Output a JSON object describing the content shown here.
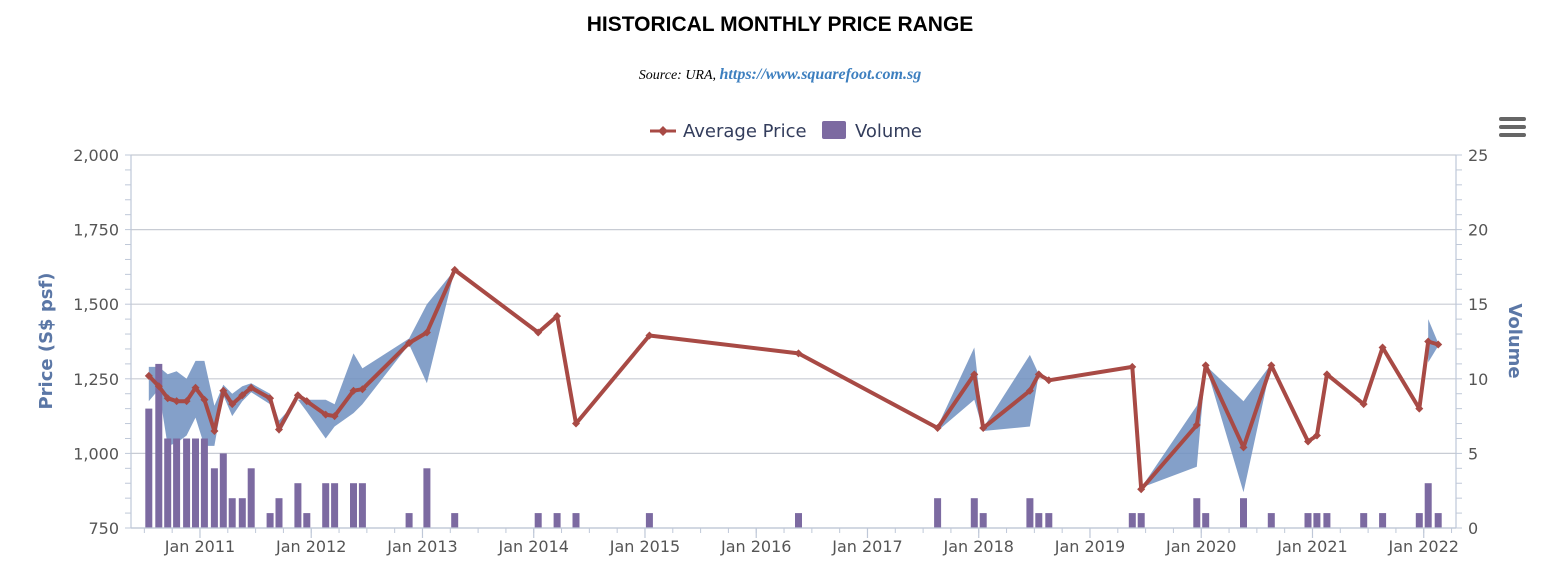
{
  "chart_data": {
    "type": "line+range+bar",
    "title": "HISTORICAL MONTHLY PRICE RANGE",
    "subtitle_prefix": "Source: URA, ",
    "subtitle_link": "https://www.squarefoot.com.sg",
    "legend": [
      "Average Price",
      "Volume"
    ],
    "y_left": {
      "title": "Price (S$ psf)",
      "min": 750,
      "max": 2000,
      "ticks": [
        750,
        1000,
        1250,
        1500,
        1750,
        2000
      ],
      "tick_labels": [
        "750",
        "1,000",
        "1,250",
        "1,500",
        "1,750",
        "2,000"
      ]
    },
    "y_right": {
      "title": "Volume",
      "min": 0,
      "max": 25,
      "ticks": [
        0,
        5,
        10,
        15,
        20,
        25
      ],
      "tick_labels": [
        "0",
        "5",
        "10",
        "15",
        "20",
        "25"
      ]
    },
    "x_axis": {
      "min": 2010.38,
      "max": 2022.29,
      "ticks": [
        2011,
        2012,
        2013,
        2014,
        2015,
        2016,
        2017,
        2018,
        2019,
        2020,
        2021,
        2022
      ],
      "tick_labels": [
        "Jan 2011",
        "Jan 2012",
        "Jan 2013",
        "Jan 2014",
        "Jan 2015",
        "Jan 2016",
        "Jan 2017",
        "Jan 2018",
        "Jan 2019",
        "Jan 2020",
        "Jan 2021",
        "Jan 2022"
      ]
    },
    "colors": {
      "line": "#a84a45",
      "range": "#6f8fbf",
      "volume": "#7c6aa1",
      "grid": "#c8ccd4",
      "axis": "#bfc8d8"
    },
    "average_price": [
      [
        2010.54,
        1260
      ],
      [
        2010.63,
        1225
      ],
      [
        2010.71,
        1185
      ],
      [
        2010.79,
        1175
      ],
      [
        2010.88,
        1175
      ],
      [
        2010.96,
        1220
      ],
      [
        2011.04,
        1180
      ],
      [
        2011.13,
        1075
      ],
      [
        2011.21,
        1210
      ],
      [
        2011.29,
        1165
      ],
      [
        2011.38,
        1195
      ],
      [
        2011.46,
        1220
      ],
      [
        2011.63,
        1185
      ],
      [
        2011.71,
        1080
      ],
      [
        2011.88,
        1195
      ],
      [
        2011.96,
        1175
      ],
      [
        2012.13,
        1130
      ],
      [
        2012.21,
        1125
      ],
      [
        2012.38,
        1210
      ],
      [
        2012.46,
        1215
      ],
      [
        2012.88,
        1370
      ],
      [
        2013.04,
        1405
      ],
      [
        2013.29,
        1615
      ],
      [
        2014.04,
        1405
      ],
      [
        2014.21,
        1460
      ],
      [
        2014.38,
        1100
      ],
      [
        2015.04,
        1395
      ],
      [
        2016.38,
        1335
      ],
      [
        2017.63,
        1085
      ],
      [
        2017.96,
        1265
      ],
      [
        2018.04,
        1085
      ],
      [
        2018.46,
        1210
      ],
      [
        2018.54,
        1265
      ],
      [
        2018.63,
        1245
      ],
      [
        2019.38,
        1290
      ],
      [
        2019.46,
        880
      ],
      [
        2019.96,
        1095
      ],
      [
        2020.04,
        1295
      ],
      [
        2020.38,
        1020
      ],
      [
        2020.63,
        1295
      ],
      [
        2020.96,
        1040
      ],
      [
        2021.04,
        1060
      ],
      [
        2021.13,
        1265
      ],
      [
        2021.46,
        1165
      ],
      [
        2021.63,
        1355
      ],
      [
        2021.96,
        1150
      ],
      [
        2022.04,
        1375
      ],
      [
        2022.13,
        1365
      ]
    ],
    "price_range": [
      [
        2010.54,
        1175,
        1290
      ],
      [
        2010.63,
        1215,
        1290
      ],
      [
        2010.71,
        1025,
        1265
      ],
      [
        2010.79,
        1035,
        1275
      ],
      [
        2010.88,
        1060,
        1250
      ],
      [
        2010.96,
        1120,
        1310
      ],
      [
        2011.04,
        1025,
        1310
      ],
      [
        2011.13,
        1025,
        1160
      ],
      [
        2011.21,
        1195,
        1230
      ],
      [
        2011.29,
        1125,
        1200
      ],
      [
        2011.38,
        1175,
        1225
      ],
      [
        2011.46,
        1205,
        1235
      ],
      [
        2011.63,
        1165,
        1200
      ],
      [
        2011.71,
        1065,
        1110
      ],
      [
        2011.88,
        1180,
        1180
      ],
      [
        2011.96,
        1140,
        1180
      ],
      [
        2012.13,
        1050,
        1180
      ],
      [
        2012.21,
        1090,
        1165
      ],
      [
        2012.38,
        1135,
        1335
      ],
      [
        2012.46,
        1165,
        1285
      ],
      [
        2012.88,
        1365,
        1385
      ],
      [
        2013.04,
        1235,
        1500
      ],
      [
        2013.29,
        1615,
        1615
      ],
      [
        2017.63,
        1075,
        1090
      ],
      [
        2017.96,
        1180,
        1355
      ],
      [
        2018.04,
        1075,
        1085
      ],
      [
        2018.46,
        1090,
        1330
      ],
      [
        2018.54,
        1265,
        1265
      ],
      [
        2019.46,
        885,
        885
      ],
      [
        2019.96,
        955,
        1160
      ],
      [
        2020.04,
        1295,
        1295
      ],
      [
        2020.38,
        870,
        1175
      ],
      [
        2020.63,
        1300,
        1300
      ],
      [
        2022.04,
        1305,
        1450
      ],
      [
        2022.13,
        1360,
        1370
      ]
    ],
    "volume": [
      [
        2010.54,
        8
      ],
      [
        2010.63,
        11
      ],
      [
        2010.71,
        6
      ],
      [
        2010.79,
        6
      ],
      [
        2010.88,
        6
      ],
      [
        2010.96,
        6
      ],
      [
        2011.04,
        6
      ],
      [
        2011.13,
        4
      ],
      [
        2011.21,
        5
      ],
      [
        2011.29,
        2
      ],
      [
        2011.38,
        2
      ],
      [
        2011.46,
        4
      ],
      [
        2011.63,
        1
      ],
      [
        2011.71,
        2
      ],
      [
        2011.88,
        3
      ],
      [
        2011.96,
        1
      ],
      [
        2012.13,
        3
      ],
      [
        2012.21,
        3
      ],
      [
        2012.38,
        3
      ],
      [
        2012.46,
        3
      ],
      [
        2012.88,
        1
      ],
      [
        2013.04,
        4
      ],
      [
        2013.29,
        1
      ],
      [
        2014.04,
        1
      ],
      [
        2014.21,
        1
      ],
      [
        2014.38,
        1
      ],
      [
        2015.04,
        1
      ],
      [
        2016.38,
        1
      ],
      [
        2017.63,
        2
      ],
      [
        2017.96,
        2
      ],
      [
        2018.04,
        1
      ],
      [
        2018.46,
        2
      ],
      [
        2018.54,
        1
      ],
      [
        2018.63,
        1
      ],
      [
        2019.38,
        1
      ],
      [
        2019.46,
        1
      ],
      [
        2019.96,
        2
      ],
      [
        2020.04,
        1
      ],
      [
        2020.38,
        2
      ],
      [
        2020.63,
        1
      ],
      [
        2020.96,
        1
      ],
      [
        2021.04,
        1
      ],
      [
        2021.13,
        1
      ],
      [
        2021.46,
        1
      ],
      [
        2021.63,
        1
      ],
      [
        2021.96,
        1
      ],
      [
        2022.04,
        3
      ],
      [
        2022.13,
        1
      ]
    ]
  }
}
